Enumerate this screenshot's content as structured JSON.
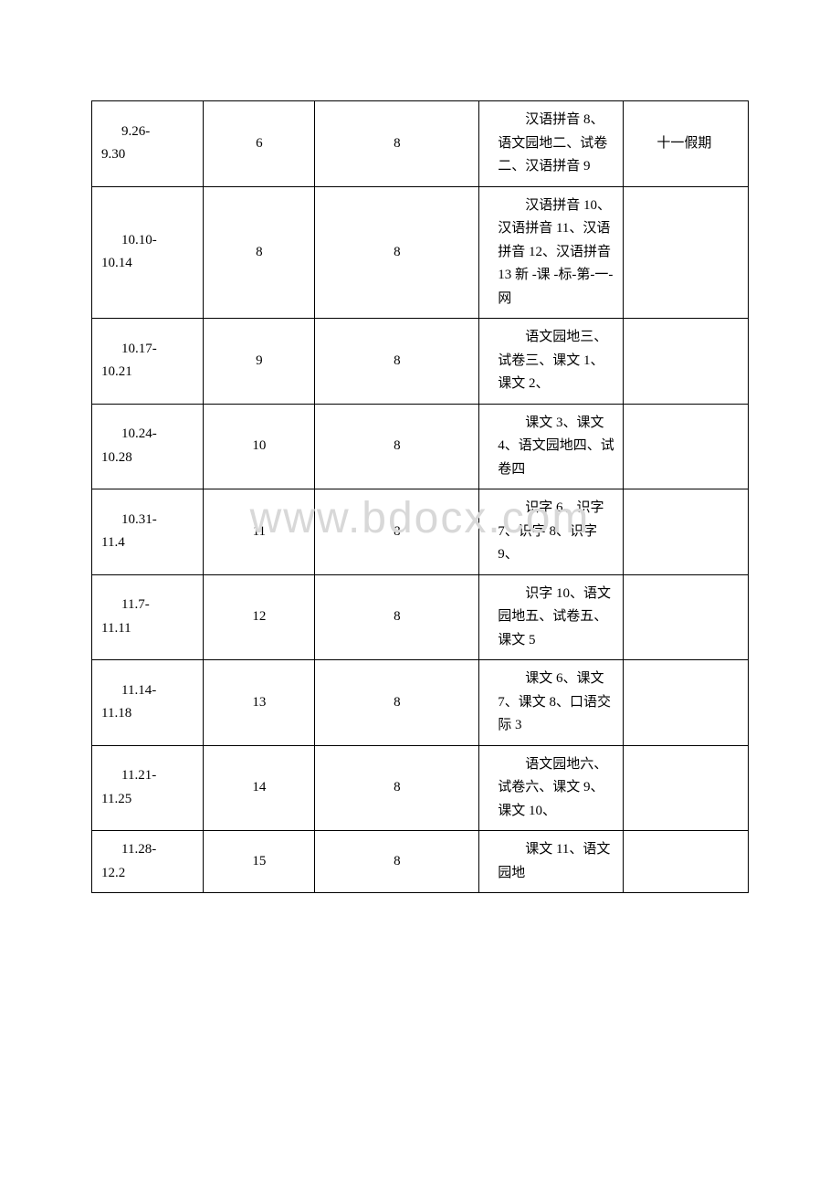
{
  "watermark": "www.bdocx.com",
  "table": {
    "columns": {
      "widths": [
        "17%",
        "17%",
        "25%",
        "22%",
        "19%"
      ]
    },
    "rows": [
      {
        "dates": [
          "9.26-",
          "9.30"
        ],
        "week": "6",
        "hours": "8",
        "content": "汉语拼音 8、语文园地二、试卷二、汉语拼音 9",
        "note": "十一假期"
      },
      {
        "dates": [
          "10.10-",
          "10.14"
        ],
        "week": "8",
        "hours": "8",
        "content": "汉语拼音 10、汉语拼音 11、汉语拼音 12、汉语拼音 13 新 -课 -标-第-一-网",
        "note": ""
      },
      {
        "dates": [
          "10.17-",
          "10.21"
        ],
        "week": "9",
        "hours": "8",
        "content": "语文园地三、试卷三、课文 1、课文 2、",
        "note": ""
      },
      {
        "dates": [
          "10.24-",
          "10.28"
        ],
        "week": "10",
        "hours": "8",
        "content": "课文 3、课文 4、语文园地四、试卷四",
        "note": ""
      },
      {
        "dates": [
          "10.31-",
          "11.4"
        ],
        "week": "11",
        "hours": "8",
        "content": "识字 6、识字 7、识字 8、识字 9、",
        "note": ""
      },
      {
        "dates": [
          "11.7-",
          "11.11"
        ],
        "week": "12",
        "hours": "8",
        "content": "识字 10、语文园地五、试卷五、课文 5",
        "note": ""
      },
      {
        "dates": [
          "11.14-",
          "11.18"
        ],
        "week": "13",
        "hours": "8",
        "content": "课文 6、课文 7、课文 8、口语交际 3",
        "note": ""
      },
      {
        "dates": [
          "11.21-",
          "11.25"
        ],
        "week": "14",
        "hours": "8",
        "content": "语文园地六、试卷六、课文 9、课文 10、",
        "note": ""
      },
      {
        "dates": [
          "11.28-",
          "12.2"
        ],
        "week": "15",
        "hours": "8",
        "content": "课文 11、语文园地",
        "note": ""
      }
    ]
  },
  "colors": {
    "background": "#ffffff",
    "text": "#000000",
    "border": "#000000",
    "watermark": "#d8d8d8"
  },
  "font": {
    "body_size": 15,
    "watermark_size": 48
  }
}
